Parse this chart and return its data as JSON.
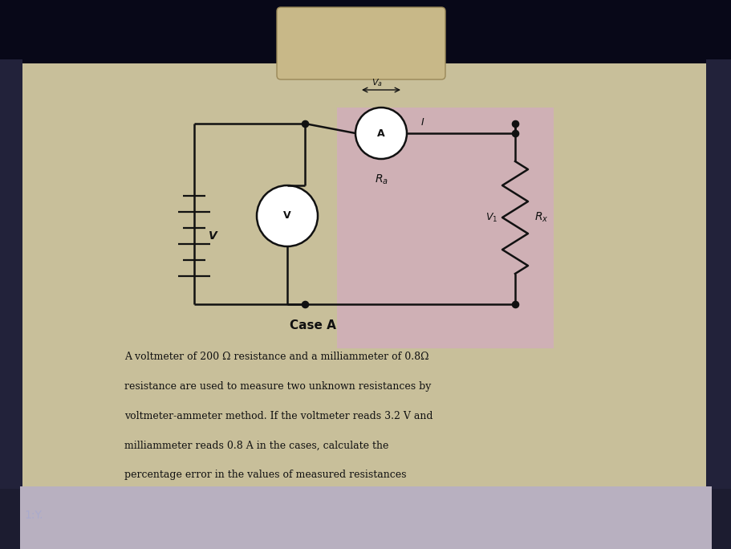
{
  "bg_outer": "#1c1c30",
  "bg_paper": "#c8bf9a",
  "bg_highlight": "#d4a8c4",
  "circuit_color": "#111111",
  "text_color": "#111111",
  "case_label": "Case A",
  "line1": "A voltmeter of 200 Ω resistance and a milliammeter of 0.8Ω",
  "line2": "resistance are used to measure two unknown resistances by",
  "line3": "voltmeter-ammeter method. If the voltmeter reads 3.2 V and",
  "line4": "milliammeter reads 0.8 A in the cases, calculate the",
  "line5": "percentage error in the values of measured resistances",
  "bottom_left_text": "1:Y.",
  "figsize": [
    9.12,
    6.84
  ],
  "dpi": 100,
  "top_bar_color": "#080818",
  "side_bar_color": "#22223a",
  "tape_color": "#c8b888"
}
